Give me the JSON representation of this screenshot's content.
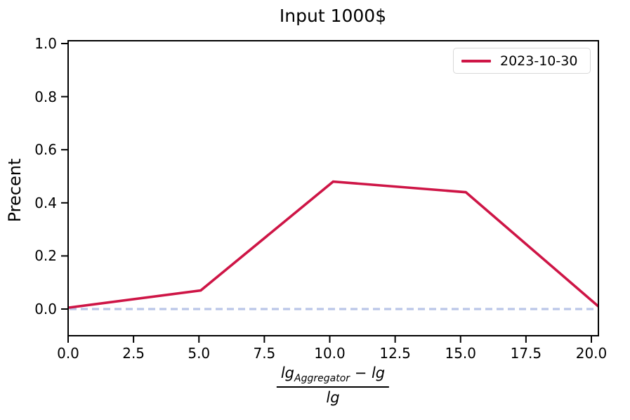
{
  "figure": {
    "title": "Input 1000$",
    "ylabel": "Precent",
    "xlabel_parts": {
      "numerator_base": "lg",
      "numerator_sub": "Aggregator",
      "numerator_rest": " − lg",
      "denominator": "lg"
    },
    "legend": {
      "position": "upper right",
      "entries": [
        {
          "label": "2023-10-30",
          "color": "#ce1546"
        }
      ]
    }
  },
  "colors": {
    "series": "#ce1546",
    "zero_line": "#bac6e8",
    "axes": "#000000",
    "legend_border": "#d8d8d8",
    "background": "#ffffff"
  },
  "chart_data": {
    "type": "line",
    "title": "Input 1000$",
    "xlabel": "(lg_Aggregator − lg) / lg",
    "ylabel": "Precent",
    "xlim": [
      0,
      20.27
    ],
    "ylim": [
      -0.1,
      1.01
    ],
    "grid": false,
    "legend_position": "upper right",
    "x_ticks": [
      0.0,
      2.5,
      5.0,
      7.5,
      10.0,
      12.5,
      15.0,
      17.5,
      20.0
    ],
    "x_tick_labels": [
      "0.0",
      "2.5",
      "5.0",
      "7.5",
      "10.0",
      "12.5",
      "15.0",
      "17.5",
      "20.0"
    ],
    "y_ticks": [
      0.0,
      0.2,
      0.4,
      0.6,
      0.8,
      1.0
    ],
    "y_tick_labels": [
      "0.0",
      "0.2",
      "0.4",
      "0.6",
      "0.8",
      "1.0"
    ],
    "series": [
      {
        "name": "2023-10-30",
        "color": "#ce1546",
        "style": "solid",
        "x": [
          0.0,
          5.07,
          10.13,
          15.2,
          20.27
        ],
        "y": [
          0.005,
          0.07,
          0.48,
          0.44,
          0.01
        ]
      }
    ],
    "reference_line": {
      "y": 0.0,
      "color": "#bac6e8",
      "style": "dashed"
    }
  }
}
